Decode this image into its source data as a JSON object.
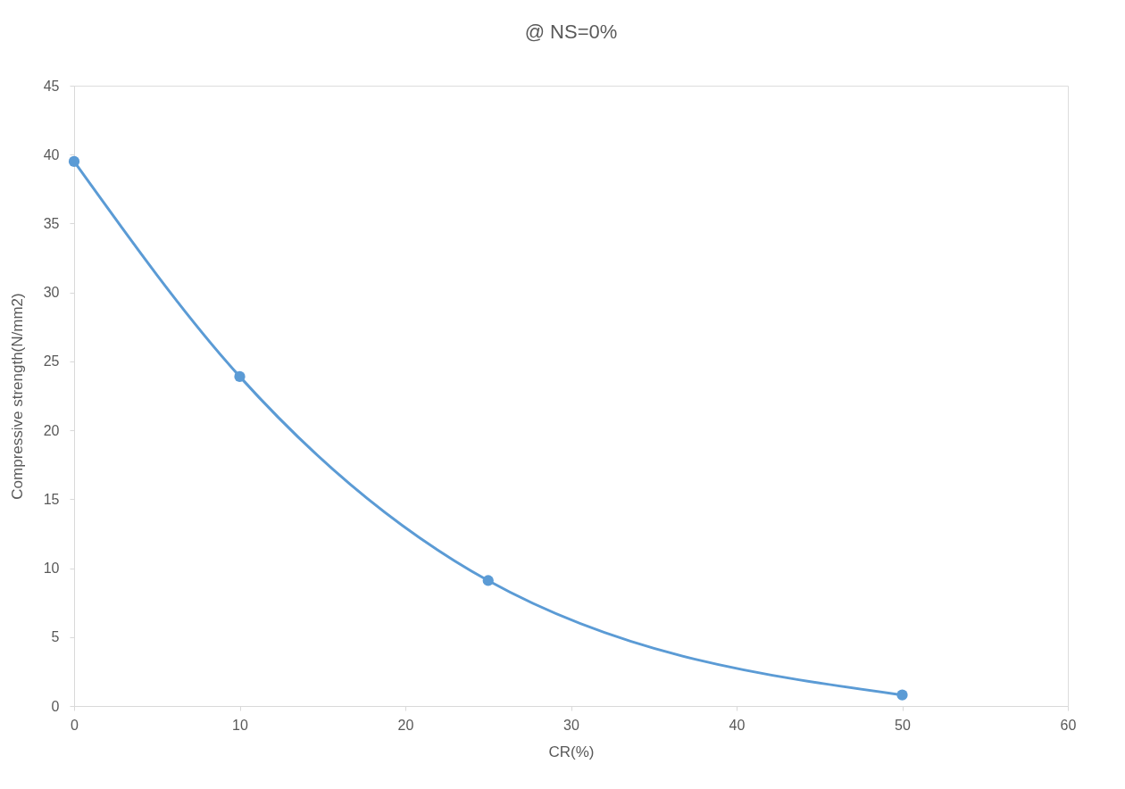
{
  "chart_data": {
    "type": "line",
    "title": "@ NS=0%",
    "xlabel": "CR(%)",
    "ylabel": "Compressive strength(N/mm2)",
    "x": [
      0,
      10,
      25,
      50
    ],
    "series": [
      {
        "color": "#5b9bd5",
        "values": [
          39.5,
          23.9,
          9.1,
          0.8
        ]
      }
    ],
    "xlim": [
      0,
      60
    ],
    "xticks": [
      0,
      10,
      20,
      30,
      40,
      50,
      60
    ],
    "ylim": [
      0,
      45
    ],
    "yticks": [
      0,
      5,
      10,
      15,
      20,
      25,
      30,
      35,
      40,
      45
    ],
    "grid": false,
    "marker": "circle",
    "line_style": "solid",
    "legend": false
  }
}
